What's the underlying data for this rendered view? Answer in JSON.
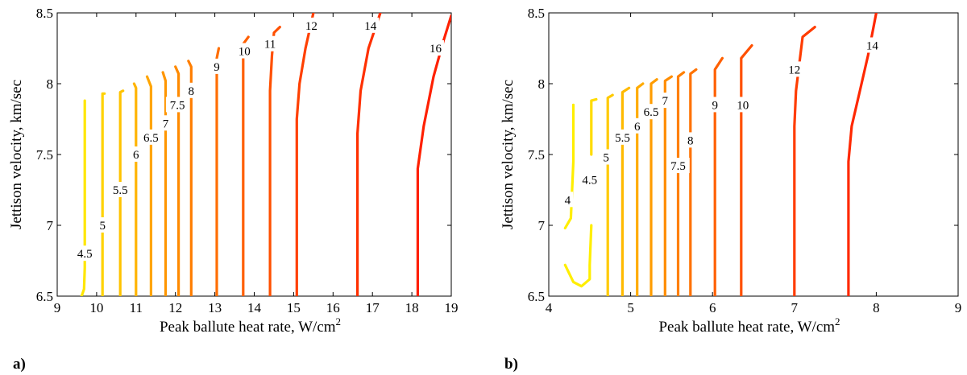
{
  "panels": [
    {
      "panel_label": "a)",
      "xlabel": "Peak ballute heat rate, W/cm",
      "xlabel_sup": "2",
      "ylabel": "Jettison velocity, km/sec",
      "xlim": [
        9,
        19
      ],
      "ylim": [
        6.5,
        8.5
      ],
      "xticks": [
        "9",
        "10",
        "11",
        "12",
        "13",
        "14",
        "15",
        "16",
        "17",
        "18",
        "19"
      ],
      "yticks": [
        "6.5",
        "7",
        "7.5",
        "8",
        "8.5"
      ]
    },
    {
      "panel_label": "b)",
      "xlabel": "Peak ballute heat rate, W/cm",
      "xlabel_sup": "2",
      "ylabel": "Jettison velocity, km/sec",
      "xlim": [
        4,
        9
      ],
      "ylim": [
        6.5,
        8.5
      ],
      "xticks": [
        "4",
        "5",
        "6",
        "7",
        "8",
        "9"
      ],
      "yticks": [
        "6.5",
        "7",
        "7.5",
        "8",
        "8.5"
      ]
    }
  ],
  "chart_data": [
    {
      "type": "line",
      "subtype": "contour",
      "xlabel": "Peak ballute heat rate, W/cm2",
      "ylabel": "Jettison velocity, km/sec",
      "xlim": [
        9,
        19
      ],
      "ylim": [
        6.5,
        8.5
      ],
      "colormap": "autumn (yellow to red)",
      "series": [
        {
          "name": "4.5",
          "color": "#ffe600",
          "label_pos": [
            9.7,
            6.8
          ],
          "points": [
            [
              9.62,
              6.5
            ],
            [
              9.68,
              6.55
            ],
            [
              9.7,
              6.7
            ],
            [
              9.7,
              7.88
            ]
          ]
        },
        {
          "name": "5",
          "color": "#ffd200",
          "label_pos": [
            10.15,
            7.0
          ],
          "points": [
            [
              10.15,
              6.5
            ],
            [
              10.15,
              7.93
            ],
            [
              10.2,
              7.93
            ]
          ]
        },
        {
          "name": "5.5",
          "color": "#ffc300",
          "label_pos": [
            10.6,
            7.25
          ],
          "points": [
            [
              10.6,
              6.5
            ],
            [
              10.6,
              7.94
            ],
            [
              10.67,
              7.95
            ]
          ]
        },
        {
          "name": "6",
          "color": "#ffb400",
          "label_pos": [
            11.0,
            7.5
          ],
          "points": [
            [
              11.0,
              6.5
            ],
            [
              11.0,
              7.97
            ],
            [
              10.95,
              8.0
            ]
          ]
        },
        {
          "name": "6.5",
          "color": "#ffa500",
          "label_pos": [
            11.38,
            7.62
          ],
          "points": [
            [
              11.38,
              6.5
            ],
            [
              11.38,
              7.98
            ],
            [
              11.28,
              8.05
            ]
          ]
        },
        {
          "name": "7",
          "color": "#ff9600",
          "label_pos": [
            11.75,
            7.72
          ],
          "points": [
            [
              11.75,
              6.5
            ],
            [
              11.75,
              8.02
            ],
            [
              11.68,
              8.08
            ]
          ]
        },
        {
          "name": "7.5",
          "color": "#ff8a00",
          "label_pos": [
            12.05,
            7.85
          ],
          "points": [
            [
              12.08,
              6.5
            ],
            [
              12.08,
              8.07
            ],
            [
              12.0,
              8.12
            ]
          ]
        },
        {
          "name": "8",
          "color": "#ff7e00",
          "label_pos": [
            12.4,
            7.95
          ],
          "points": [
            [
              12.4,
              6.5
            ],
            [
              12.4,
              8.12
            ],
            [
              12.33,
              8.16
            ]
          ]
        },
        {
          "name": "9",
          "color": "#ff6e00",
          "label_pos": [
            13.05,
            8.12
          ],
          "points": [
            [
              13.05,
              6.5
            ],
            [
              13.05,
              8.18
            ],
            [
              13.1,
              8.25
            ]
          ]
        },
        {
          "name": "10",
          "color": "#ff5f00",
          "label_pos": [
            13.75,
            8.23
          ],
          "points": [
            [
              13.72,
              6.5
            ],
            [
              13.72,
              8.28
            ],
            [
              13.85,
              8.33
            ]
          ]
        },
        {
          "name": "11",
          "color": "#ff5000",
          "label_pos": [
            14.4,
            8.28
          ],
          "points": [
            [
              14.4,
              6.5
            ],
            [
              14.4,
              7.95
            ],
            [
              14.45,
              8.2
            ],
            [
              14.5,
              8.36
            ],
            [
              14.65,
              8.4
            ]
          ]
        },
        {
          "name": "12",
          "color": "#ff4000",
          "label_pos": [
            15.45,
            8.41
          ],
          "points": [
            [
              15.08,
              6.5
            ],
            [
              15.08,
              7.75
            ],
            [
              15.15,
              8.0
            ],
            [
              15.3,
              8.25
            ],
            [
              15.5,
              8.5
            ]
          ]
        },
        {
          "name": "14",
          "color": "#ff3000",
          "label_pos": [
            16.95,
            8.41
          ],
          "points": [
            [
              16.62,
              6.5
            ],
            [
              16.62,
              7.65
            ],
            [
              16.7,
              7.95
            ],
            [
              16.9,
              8.25
            ],
            [
              17.2,
              8.5
            ]
          ]
        },
        {
          "name": "16",
          "color": "#ff2000",
          "label_pos": [
            18.6,
            8.25
          ],
          "points": [
            [
              18.15,
              6.5
            ],
            [
              18.15,
              7.4
            ],
            [
              18.3,
              7.7
            ],
            [
              18.55,
              8.05
            ],
            [
              18.8,
              8.3
            ],
            [
              19.0,
              8.48
            ]
          ]
        }
      ]
    },
    {
      "type": "line",
      "subtype": "contour",
      "xlabel": "Peak ballute heat rate, W/cm2",
      "ylabel": "Jettison velocity, km/sec",
      "xlim": [
        4,
        9
      ],
      "ylim": [
        6.5,
        8.5
      ],
      "colormap": "autumn (yellow to red)",
      "series": [
        {
          "name": "4",
          "color": "#ffee00",
          "label_pos": [
            4.23,
            7.18
          ],
          "points": [
            [
              4.2,
              6.72
            ],
            [
              4.3,
              6.6
            ],
            [
              4.4,
              6.57
            ],
            [
              4.5,
              6.62
            ],
            [
              4.5,
              6.72
            ],
            [
              4.52,
              7.0
            ]
          ],
          "points2": [
            [
              4.2,
              6.98
            ],
            [
              4.27,
              7.05
            ],
            [
              4.3,
              7.45
            ],
            [
              4.3,
              7.85
            ]
          ]
        },
        {
          "name": "4.5",
          "color": "#ffdc00",
          "label_pos": [
            4.5,
            7.32
          ],
          "points": [
            [
              4.52,
              7.5
            ],
            [
              4.52,
              7.88
            ],
            [
              4.58,
              7.89
            ]
          ]
        },
        {
          "name": "5",
          "color": "#ffca00",
          "label_pos": [
            4.7,
            7.48
          ],
          "points": [
            [
              4.72,
              6.5
            ],
            [
              4.72,
              7.9
            ],
            [
              4.78,
              7.92
            ]
          ]
        },
        {
          "name": "5.5",
          "color": "#ffba00",
          "label_pos": [
            4.9,
            7.62
          ],
          "points": [
            [
              4.9,
              6.5
            ],
            [
              4.9,
              7.94
            ],
            [
              4.98,
              7.97
            ]
          ]
        },
        {
          "name": "6",
          "color": "#ffab00",
          "label_pos": [
            5.08,
            7.7
          ],
          "points": [
            [
              5.08,
              6.5
            ],
            [
              5.08,
              7.97
            ],
            [
              5.15,
              8.0
            ]
          ]
        },
        {
          "name": "6.5",
          "color": "#ff9c00",
          "label_pos": [
            5.25,
            7.8
          ],
          "points": [
            [
              5.25,
              6.5
            ],
            [
              5.25,
              8.0
            ],
            [
              5.32,
              8.03
            ]
          ]
        },
        {
          "name": "7",
          "color": "#ff8d00",
          "label_pos": [
            5.42,
            7.88
          ],
          "points": [
            [
              5.42,
              6.5
            ],
            [
              5.42,
              8.02
            ],
            [
              5.5,
              8.05
            ]
          ]
        },
        {
          "name": "7.5",
          "color": "#ff7f00",
          "label_pos": [
            5.58,
            7.42
          ],
          "points": [
            [
              5.58,
              6.5
            ],
            [
              5.58,
              8.05
            ],
            [
              5.65,
              8.08
            ]
          ]
        },
        {
          "name": "8",
          "color": "#ff7200",
          "label_pos": [
            5.73,
            7.6
          ],
          "points": [
            [
              5.73,
              6.5
            ],
            [
              5.73,
              8.07
            ],
            [
              5.8,
              8.1
            ]
          ]
        },
        {
          "name": "9",
          "color": "#ff6000",
          "label_pos": [
            6.03,
            7.85
          ],
          "points": [
            [
              6.03,
              6.5
            ],
            [
              6.03,
              8.1
            ],
            [
              6.12,
              8.18
            ]
          ]
        },
        {
          "name": "10",
          "color": "#ff5000",
          "label_pos": [
            6.37,
            7.85
          ],
          "points": [
            [
              6.35,
              6.5
            ],
            [
              6.35,
              8.18
            ],
            [
              6.48,
              8.27
            ]
          ]
        },
        {
          "name": "12",
          "color": "#ff3c00",
          "label_pos": [
            7.0,
            8.1
          ],
          "points": [
            [
              7.0,
              6.5
            ],
            [
              7.0,
              7.7
            ],
            [
              7.02,
              7.95
            ],
            [
              7.1,
              8.33
            ],
            [
              7.25,
              8.4
            ]
          ]
        },
        {
          "name": "14",
          "color": "#ff2800",
          "label_pos": [
            7.95,
            8.27
          ],
          "points": [
            [
              7.66,
              6.5
            ],
            [
              7.66,
              7.45
            ],
            [
              7.7,
              7.7
            ],
            [
              7.8,
              7.95
            ],
            [
              7.9,
              8.2
            ],
            [
              8.0,
              8.5
            ]
          ]
        }
      ]
    }
  ]
}
